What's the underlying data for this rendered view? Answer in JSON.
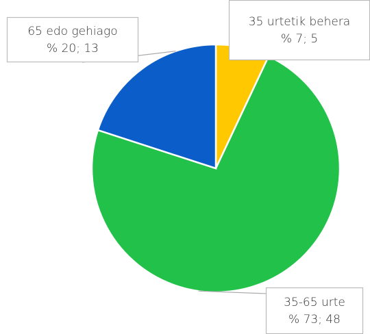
{
  "chart_data": {
    "type": "pie",
    "categories": [
      "35 urtetik behera",
      "35-65 urte",
      "65 edo gehiago"
    ],
    "values": [
      7,
      73,
      20
    ],
    "value_labels": [
      "% 7; 5",
      "% 73; 48",
      "% 20; 13"
    ],
    "colors": [
      "#ffc800",
      "#22c24a",
      "#0b5ec9"
    ]
  }
}
